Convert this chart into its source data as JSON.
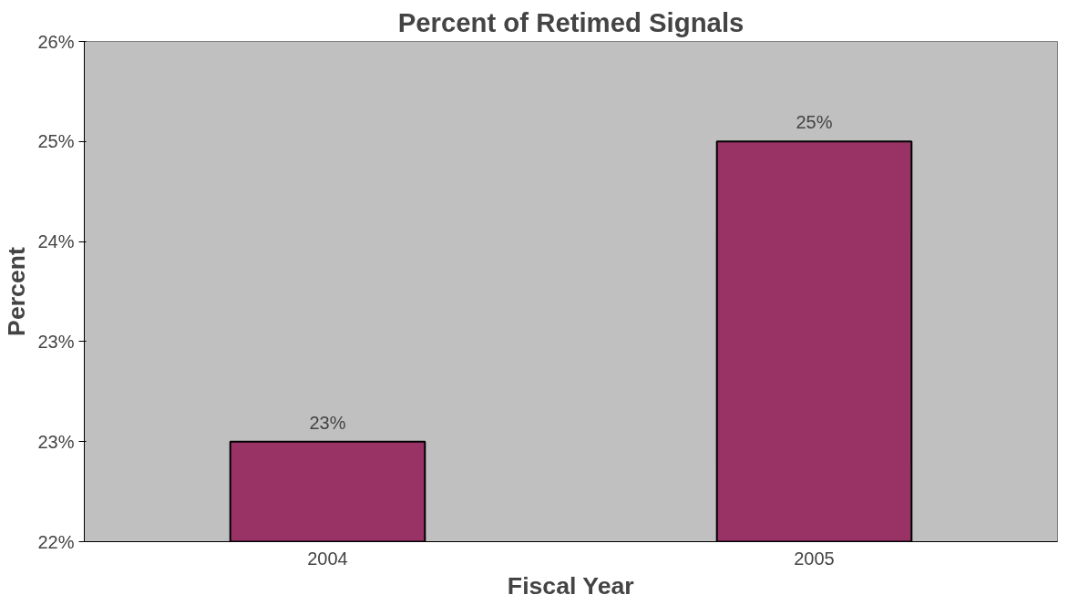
{
  "chart_data": {
    "type": "bar",
    "title": "Percent of Retimed Signals",
    "xlabel": "Fiscal Year",
    "ylabel": "Percent",
    "categories": [
      "2004",
      "2005"
    ],
    "values": [
      22.7,
      24.8
    ],
    "value_labels": [
      "23%",
      "25%"
    ],
    "color": "#993366",
    "ylim": [
      22,
      25.5
    ],
    "yticks": [
      {
        "value": 22,
        "label": "22%"
      },
      {
        "value": 22.7,
        "label": "23%"
      },
      {
        "value": 23.4,
        "label": "23%"
      },
      {
        "value": 24.1,
        "label": "24%"
      },
      {
        "value": 24.8,
        "label": "25%"
      },
      {
        "value": 25.5,
        "label": "26%"
      }
    ],
    "grid": false
  }
}
